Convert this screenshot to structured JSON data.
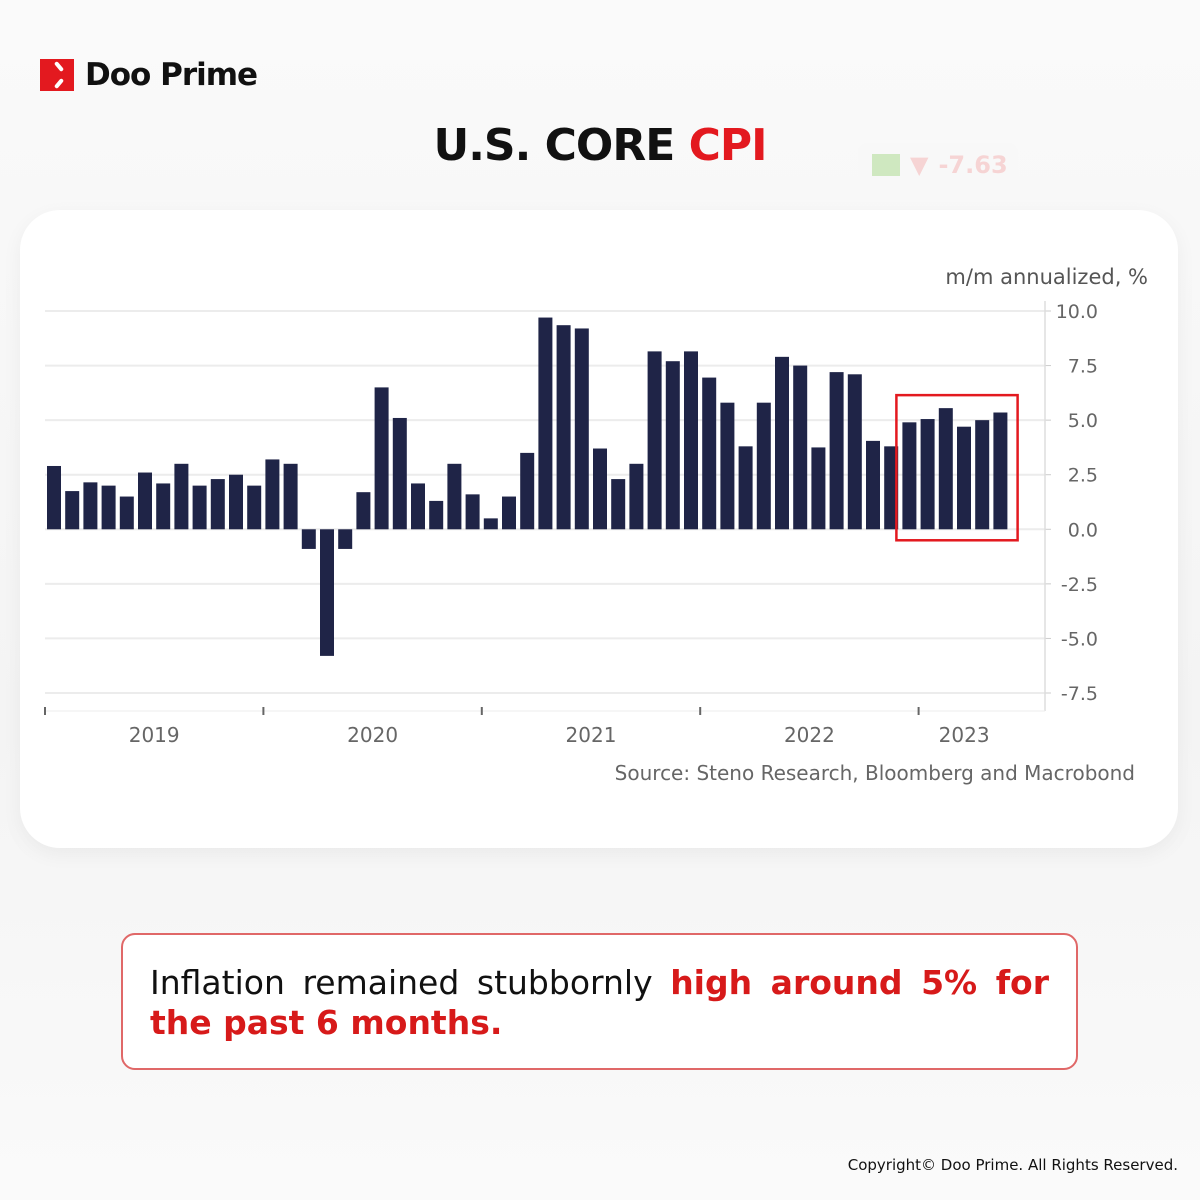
{
  "brand": {
    "name": "Doo Prime",
    "accent": "#e3191f"
  },
  "title": {
    "part1": "U.S. CORE ",
    "part2": "CPI"
  },
  "ghost_ticker": {
    "value": "-7.63"
  },
  "chart_data": {
    "type": "bar",
    "ylabel": "m/m annualized, %",
    "ylim": [
      -7.5,
      10.0
    ],
    "yticks": [
      "10.0",
      "7.5",
      "5.0",
      "2.5",
      "0.0",
      "-2.5",
      "-5.0",
      "-7.5"
    ],
    "ytick_values": [
      10,
      7.5,
      5,
      2.5,
      0,
      -2.5,
      -5,
      -7.5
    ],
    "xtick_labels": [
      "2019",
      "2020",
      "2021",
      "2022",
      "2023"
    ],
    "grid": true,
    "bar_color": "#1f2447",
    "highlight_color": "#e3191f",
    "highlight_last_n": 6,
    "values": [
      2.9,
      1.75,
      2.15,
      2.0,
      1.5,
      2.6,
      2.1,
      3.0,
      2.0,
      2.3,
      2.5,
      2.0,
      3.2,
      3.0,
      -0.9,
      -5.8,
      -0.9,
      1.7,
      6.5,
      5.1,
      2.1,
      1.3,
      3.0,
      1.6,
      0.5,
      1.5,
      3.5,
      9.7,
      9.35,
      9.2,
      3.7,
      2.3,
      3.0,
      8.15,
      7.7,
      8.15,
      6.95,
      5.8,
      3.8,
      5.8,
      7.9,
      7.5,
      3.75,
      7.2,
      7.1,
      4.05,
      3.8,
      4.9,
      5.05,
      5.55,
      4.7,
      5.0,
      5.35
    ],
    "source": "Source: Steno Research, Bloomberg and Macrobond"
  },
  "caption": {
    "normal": "Inflation remained stubbornly ",
    "highlight": "high around 5% for the past 6 months."
  },
  "copyright": "Copyright© Doo Prime. All Rights Reserved."
}
